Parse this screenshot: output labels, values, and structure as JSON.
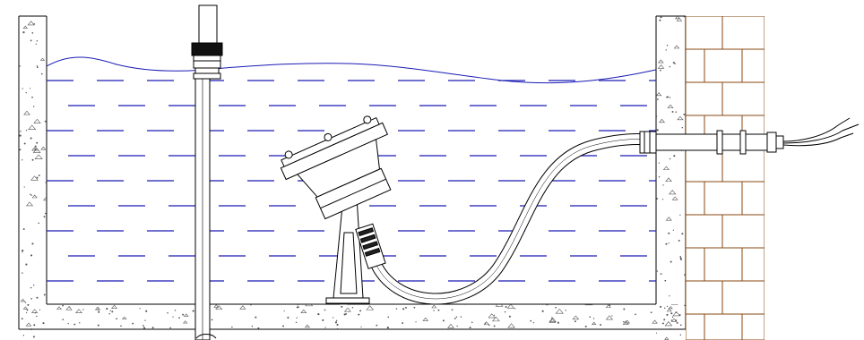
{
  "diagram": {
    "subject": "underwater-light-installation",
    "labels": [],
    "colors": {
      "line": "#000000",
      "water": "#1a1ab4",
      "brick": "#8a4a12",
      "concrete_dot": "#555555",
      "background": "#ffffff"
    },
    "components": [
      {
        "key": "pool-wall-left",
        "icon": "concrete-wall"
      },
      {
        "key": "pool-floor",
        "icon": "concrete-slab"
      },
      {
        "key": "pool-wall-right",
        "icon": "concrete-wall"
      },
      {
        "key": "brick-wall",
        "icon": "brick-masonry"
      },
      {
        "key": "water-body",
        "icon": "water-lines"
      },
      {
        "key": "standpipe",
        "icon": "pipe"
      },
      {
        "key": "light-fixture",
        "icon": "spotlight"
      },
      {
        "key": "mounting-bracket",
        "icon": "bracket"
      },
      {
        "key": "cable",
        "icon": "cable"
      },
      {
        "key": "wall-gland",
        "icon": "cable-gland"
      },
      {
        "key": "cable-wires",
        "icon": "wire-ends"
      }
    ]
  }
}
